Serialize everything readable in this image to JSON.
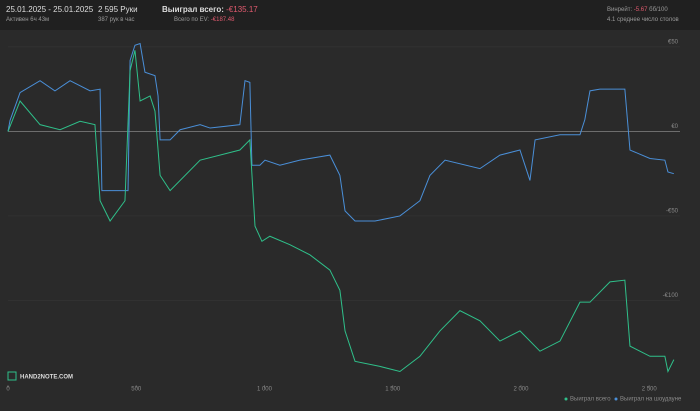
{
  "header": {
    "date_range": "25.01.2025 - 25.01.2025",
    "active": "Активен 6ч 43м",
    "hands": "2 595 Руки",
    "hands_per_hour": "387 рук в час",
    "won_label": "Выиграл всего:",
    "won_value": "-€135.17",
    "ev_label": "Всего по EV:",
    "ev_value": "-€187.48",
    "winrate_label": "Винрейт:",
    "winrate_value": "-5.67",
    "winrate_unit": "бб/100",
    "tables": "4.1 среднее число столов"
  },
  "logo": "HAND2NOTE.COM",
  "chart_data": {
    "type": "line",
    "xlim": [
      0,
      2620
    ],
    "ylim": [
      -150,
      60
    ],
    "xticks": [
      0,
      500,
      {
        "value": 1000,
        "label": "1 000"
      },
      {
        "value": 1500,
        "label": "1 500"
      },
      {
        "value": 2000,
        "label": "2 000"
      },
      {
        "value": 2500,
        "label": "2 500"
      }
    ],
    "yticks": [
      {
        "value": 50,
        "label": "€50"
      },
      {
        "value": 0,
        "label": "€0"
      },
      {
        "value": -50,
        "label": "-€50"
      },
      {
        "value": -100,
        "label": "-€100"
      }
    ],
    "grid": true,
    "series": [
      {
        "name": "Выиграл всего",
        "color": "#2fc08a",
        "x": [
          0,
          47,
          125,
          203,
          281,
          339,
          359,
          398,
          456,
          476,
          495,
          515,
          554,
          573,
          593,
          632,
          749,
          904,
          943,
          963,
          990,
          1021,
          1099,
          1177,
          1255,
          1294,
          1314,
          1353,
          1450,
          1528,
          1606,
          1684,
          1762,
          1840,
          1918,
          1996,
          2074,
          2152,
          2230,
          2269,
          2347,
          2405,
          2425,
          2503,
          2561,
          2573,
          2596
        ],
        "values": [
          0,
          18,
          4,
          1,
          6,
          4,
          -41,
          -53,
          -41,
          36,
          48,
          18,
          21,
          12,
          -26,
          -35,
          -17,
          -11,
          -5,
          -56,
          -65,
          -62,
          -67,
          -73,
          -82,
          -94,
          -118,
          -136,
          -139,
          -142,
          -133,
          -118,
          -106,
          -112,
          -124,
          -118,
          -130,
          -124,
          -101,
          -101,
          -89,
          -88,
          -127,
          -133,
          -133,
          -142,
          -135
        ]
      },
      {
        "name": "Выиграл на шоудауне",
        "color": "#4a8fd8",
        "x": [
          0,
          8,
          47,
          125,
          183,
          242,
          320,
          359,
          366,
          468,
          476,
          495,
          515,
          534,
          573,
          585,
          593,
          632,
          671,
          749,
          788,
          904,
          924,
          943,
          951,
          982,
          1002,
          1060,
          1138,
          1255,
          1294,
          1314,
          1353,
          1431,
          1528,
          1606,
          1645,
          1704,
          1840,
          1918,
          1996,
          2035,
          2055,
          2152,
          2230,
          2249,
          2269,
          2308,
          2405,
          2425,
          2503,
          2561,
          2573,
          2596
        ],
        "values": [
          0,
          6.5,
          23,
          30,
          24,
          30,
          24,
          25,
          -35,
          -35,
          42,
          51,
          52,
          35,
          33,
          21,
          -5,
          -5,
          1,
          4,
          2,
          4,
          30,
          29,
          -20,
          -20,
          -17,
          -20,
          -17,
          -14,
          -26,
          -47,
          -53,
          -53,
          -50,
          -41,
          -26,
          -17,
          -22,
          -14,
          -11,
          -29,
          -5,
          -2,
          -2,
          7,
          24,
          25,
          25,
          -11,
          -16,
          -17,
          -24,
          -25
        ]
      }
    ]
  }
}
